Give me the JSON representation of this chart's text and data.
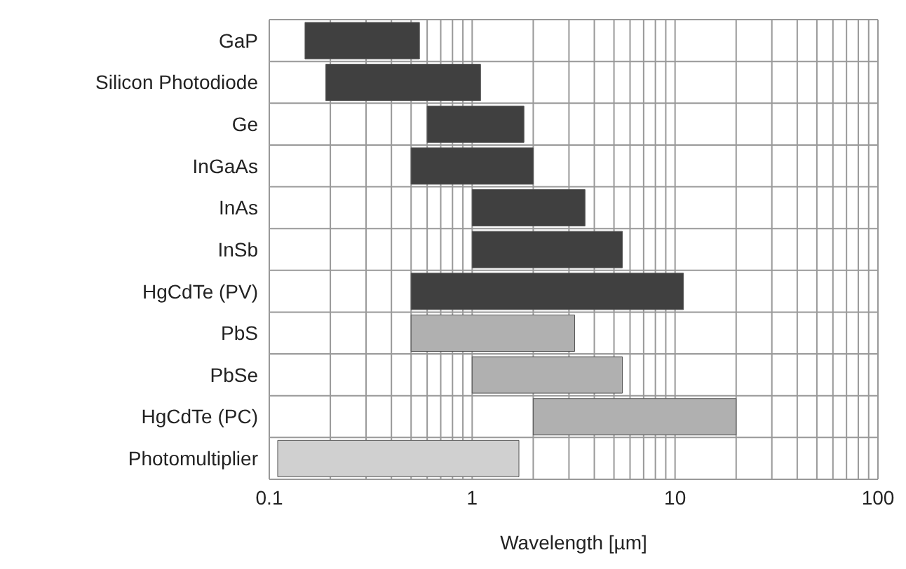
{
  "chart_data": {
    "type": "bar",
    "orientation": "horizontal",
    "xlabel": "Wavelength [µm]",
    "categories": [
      "GaP",
      "Silicon Photodiode",
      "Ge",
      "InGaAs",
      "InAs",
      "InSb",
      "HgCdTe (PV)",
      "PbS",
      "PbSe",
      "HgCdTe (PC)",
      "Photomultiplier"
    ],
    "base": [
      0.15,
      0.19,
      0.6,
      0.5,
      1,
      1,
      0.5,
      0.5,
      1,
      2,
      0.11
    ],
    "values": [
      0.4,
      0.91,
      1.2,
      1.5,
      2.6,
      4.5,
      10.5,
      2.7,
      4.5,
      18,
      1.59
    ],
    "colors": [
      "#404040",
      "#404040",
      "#404040",
      "#404040",
      "#404040",
      "#404040",
      "#404040",
      "#b0b0b0",
      "#b0b0b0",
      "#b0b0b0",
      "#d0d0d0"
    ],
    "log": "x",
    "xlim": [
      0.1,
      100
    ],
    "xticks": [
      0.1,
      {
        "value": 0.2,
        "label": null
      },
      {
        "value": 0.3,
        "label": null
      },
      {
        "value": 0.4,
        "label": null
      },
      {
        "value": 0.5,
        "label": null
      },
      {
        "value": 0.6,
        "label": null
      },
      {
        "value": 0.7,
        "label": null
      },
      {
        "value": 0.8,
        "label": null
      },
      {
        "value": 0.9,
        "label": null
      },
      1,
      {
        "value": 2,
        "label": null
      },
      {
        "value": 3,
        "label": null
      },
      {
        "value": 4,
        "label": null
      },
      {
        "value": 5,
        "label": null
      },
      {
        "value": 6,
        "label": null
      },
      {
        "value": 7,
        "label": null
      },
      {
        "value": 8,
        "label": null
      },
      {
        "value": 9,
        "label": null
      },
      10,
      {
        "value": 20,
        "label": null
      },
      {
        "value": 30,
        "label": null
      },
      {
        "value": 40,
        "label": null
      },
      {
        "value": 50,
        "label": null
      },
      {
        "value": 60,
        "label": null
      },
      {
        "value": 70,
        "label": null
      },
      {
        "value": 80,
        "label": null
      },
      {
        "value": 90,
        "label": null
      },
      100
    ],
    "grid": true
  }
}
